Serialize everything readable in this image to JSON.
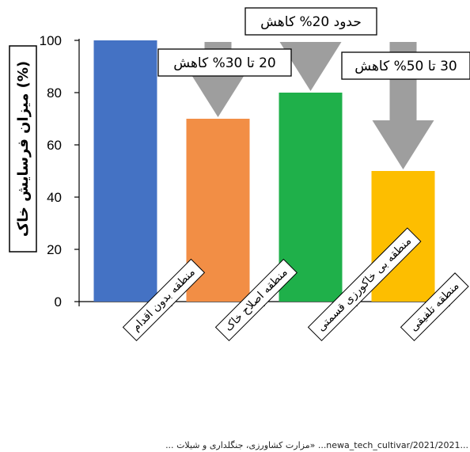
{
  "chart_data": {
    "type": "bar",
    "categories": [
      "منطقه بدون اقدام",
      "منطقه اصلاح خاک",
      "منطقه بی خاکورزی قسمتی",
      "منطقه تلفیقی"
    ],
    "values": [
      100,
      70,
      80,
      50
    ],
    "colors": [
      "#4472C4",
      "#F28E45",
      "#1FB04A",
      "#FDBE00"
    ],
    "ylabel": "میزان فرسایش خاک (%)",
    "yticks": [
      "0",
      "20",
      "40",
      "60",
      "80",
      "100"
    ],
    "ylim": [
      0,
      100
    ],
    "grid": false,
    "annotations": [
      {
        "category": "منطقه اصلاح خاک",
        "text": "20 تا 30% کاهش"
      },
      {
        "category": "منطقه بی خاکورزی قسمتی",
        "text": "حدود 20% کاهش"
      },
      {
        "category": "منطقه تلفیقی",
        "text": "30 تا 50% کاهش"
      }
    ]
  },
  "footer": "... مزارت کشاورزی، جنگلداری و شیلات» ...newa_tech_cultivar/2021/2021..."
}
